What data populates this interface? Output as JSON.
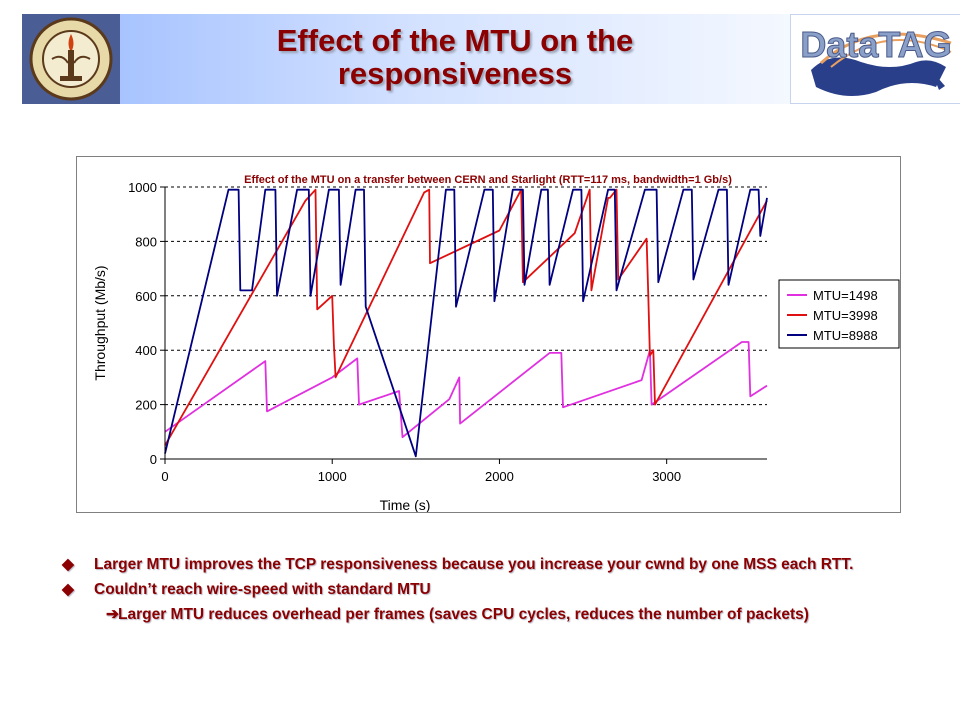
{
  "header": {
    "title": "Effect of the MTU on the\nresponsiveness",
    "left_logo_text": "CALIFORNIA INSTITUTE OF TECHNOLOGY 1891",
    "right_logo_text": "DataTAG"
  },
  "colors": {
    "title": "#8b0000",
    "series_1498": "#e030e0",
    "series_3998": "#e01010",
    "series_8988": "#000080",
    "bullets": "#8b0000"
  },
  "chart_data": {
    "type": "line",
    "title": "Effect of the MTU on a transfer between CERN and Starlight (RTT=117 ms, bandwidth=1 Gb/s)",
    "xlabel": "Time (s)",
    "ylabel": "Throughput (Mb/s)",
    "xlim": [
      0,
      3600
    ],
    "ylim": [
      0,
      1000
    ],
    "xticks": [
      0,
      1000,
      2000,
      3000
    ],
    "yticks": [
      0,
      200,
      400,
      600,
      800,
      1000
    ],
    "grid": "horizontal dashed",
    "legend": "right",
    "series": [
      {
        "name": "MTU=1498",
        "color": "#e030e0",
        "x": [
          0,
          600,
          610,
          1000,
          1150,
          1160,
          1400,
          1420,
          1700,
          1760,
          1765,
          2300,
          2370,
          2380,
          2850,
          2900,
          2910,
          3450,
          3490,
          3500,
          3600
        ],
        "y": [
          100,
          360,
          175,
          300,
          370,
          200,
          250,
          80,
          220,
          300,
          130,
          390,
          390,
          190,
          290,
          400,
          200,
          430,
          430,
          230,
          270
        ]
      },
      {
        "name": "MTU=3998",
        "color": "#e01010",
        "x": [
          0,
          840,
          900,
          910,
          1000,
          1010,
          1020,
          1550,
          1580,
          1585,
          2000,
          2130,
          2140,
          2450,
          2540,
          2550,
          2650,
          2660,
          2700,
          2710,
          2880,
          2890,
          2900,
          2920,
          2930,
          3600
        ],
        "y": [
          50,
          950,
          990,
          550,
          600,
          420,
          300,
          980,
          990,
          720,
          840,
          990,
          650,
          830,
          990,
          620,
          960,
          960,
          990,
          660,
          810,
          600,
          380,
          400,
          200,
          950
        ]
      },
      {
        "name": "MTU=8988",
        "color": "#000080",
        "x": [
          0,
          380,
          440,
          450,
          520,
          600,
          660,
          670,
          790,
          860,
          870,
          980,
          1040,
          1050,
          1140,
          1190,
          1200,
          1500,
          1680,
          1730,
          1740,
          1910,
          1960,
          1970,
          2080,
          2140,
          2150,
          2250,
          2290,
          2300,
          2440,
          2490,
          2500,
          2650,
          2690,
          2700,
          2870,
          2940,
          2950,
          3100,
          3150,
          3160,
          3310,
          3360,
          3370,
          3500,
          3550,
          3560,
          3600
        ],
        "y": [
          20,
          990,
          990,
          620,
          620,
          990,
          990,
          600,
          990,
          990,
          600,
          990,
          990,
          640,
          990,
          990,
          560,
          10,
          990,
          990,
          560,
          990,
          990,
          580,
          990,
          990,
          640,
          990,
          990,
          640,
          990,
          990,
          580,
          990,
          990,
          620,
          990,
          990,
          650,
          990,
          990,
          660,
          990,
          990,
          640,
          990,
          990,
          820,
          960
        ]
      }
    ]
  },
  "bullets": [
    {
      "text": "Larger MTU improves the TCP responsiveness because you increase your cwnd by one MSS each RTT."
    },
    {
      "text": "Couldn’t reach wire-speed with standard MTU"
    }
  ],
  "sub_bullets": [
    {
      "text": "Larger MTU reduces overhead per frames (saves CPU cycles, reduces the number of packets)"
    }
  ]
}
